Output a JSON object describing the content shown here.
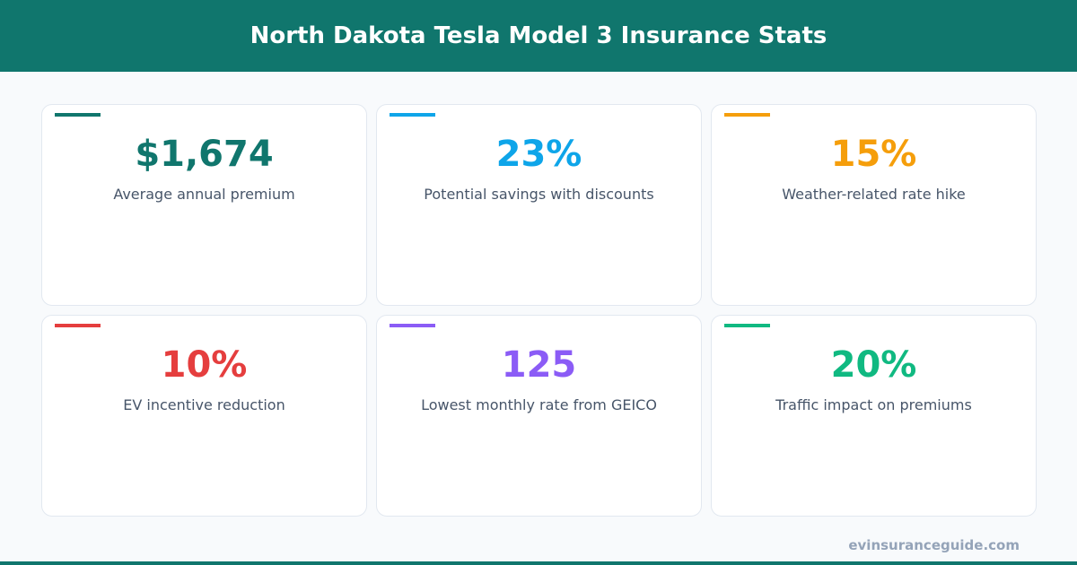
{
  "title": "North Dakota Tesla Model 3 Insurance Stats",
  "stats": [
    {
      "value": "$1,674",
      "label": "Average annual premium",
      "color": "#10766d"
    },
    {
      "value": "23%",
      "label": "Potential savings with discounts",
      "color": "#0ea5e9"
    },
    {
      "value": "15%",
      "label": "Weather-related rate hike",
      "color": "#f59e0b"
    },
    {
      "value": "10%",
      "label": "EV incentive reduction",
      "color": "#e53e3e"
    },
    {
      "value": "125",
      "label": "Lowest monthly rate from GEICO",
      "color": "#8b5cf6"
    },
    {
      "value": "20%",
      "label": "Traffic impact on premiums",
      "color": "#10b981"
    }
  ],
  "footer": "evinsuranceguide.com"
}
